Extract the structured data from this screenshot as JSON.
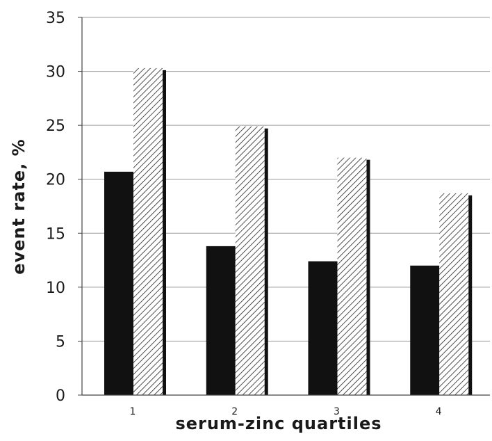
{
  "chart_data": {
    "type": "bar",
    "categories": [
      "1",
      "2",
      "3",
      "4"
    ],
    "series": [
      {
        "values": [
          20.7,
          13.8,
          12.4,
          12.0
        ],
        "fill": "solid",
        "color": "#111111"
      },
      {
        "values": [
          30.3,
          24.9,
          22.0,
          18.7
        ],
        "fill": "hatched",
        "color": "#111111"
      }
    ],
    "xlabel": "serum-zinc quartiles",
    "ylabel": "event rate, %",
    "ylim": [
      0,
      35
    ],
    "yticks": [
      "0",
      "5",
      "10",
      "15",
      "20",
      "25",
      "30",
      "35"
    ],
    "grid": true,
    "legend": "none"
  }
}
